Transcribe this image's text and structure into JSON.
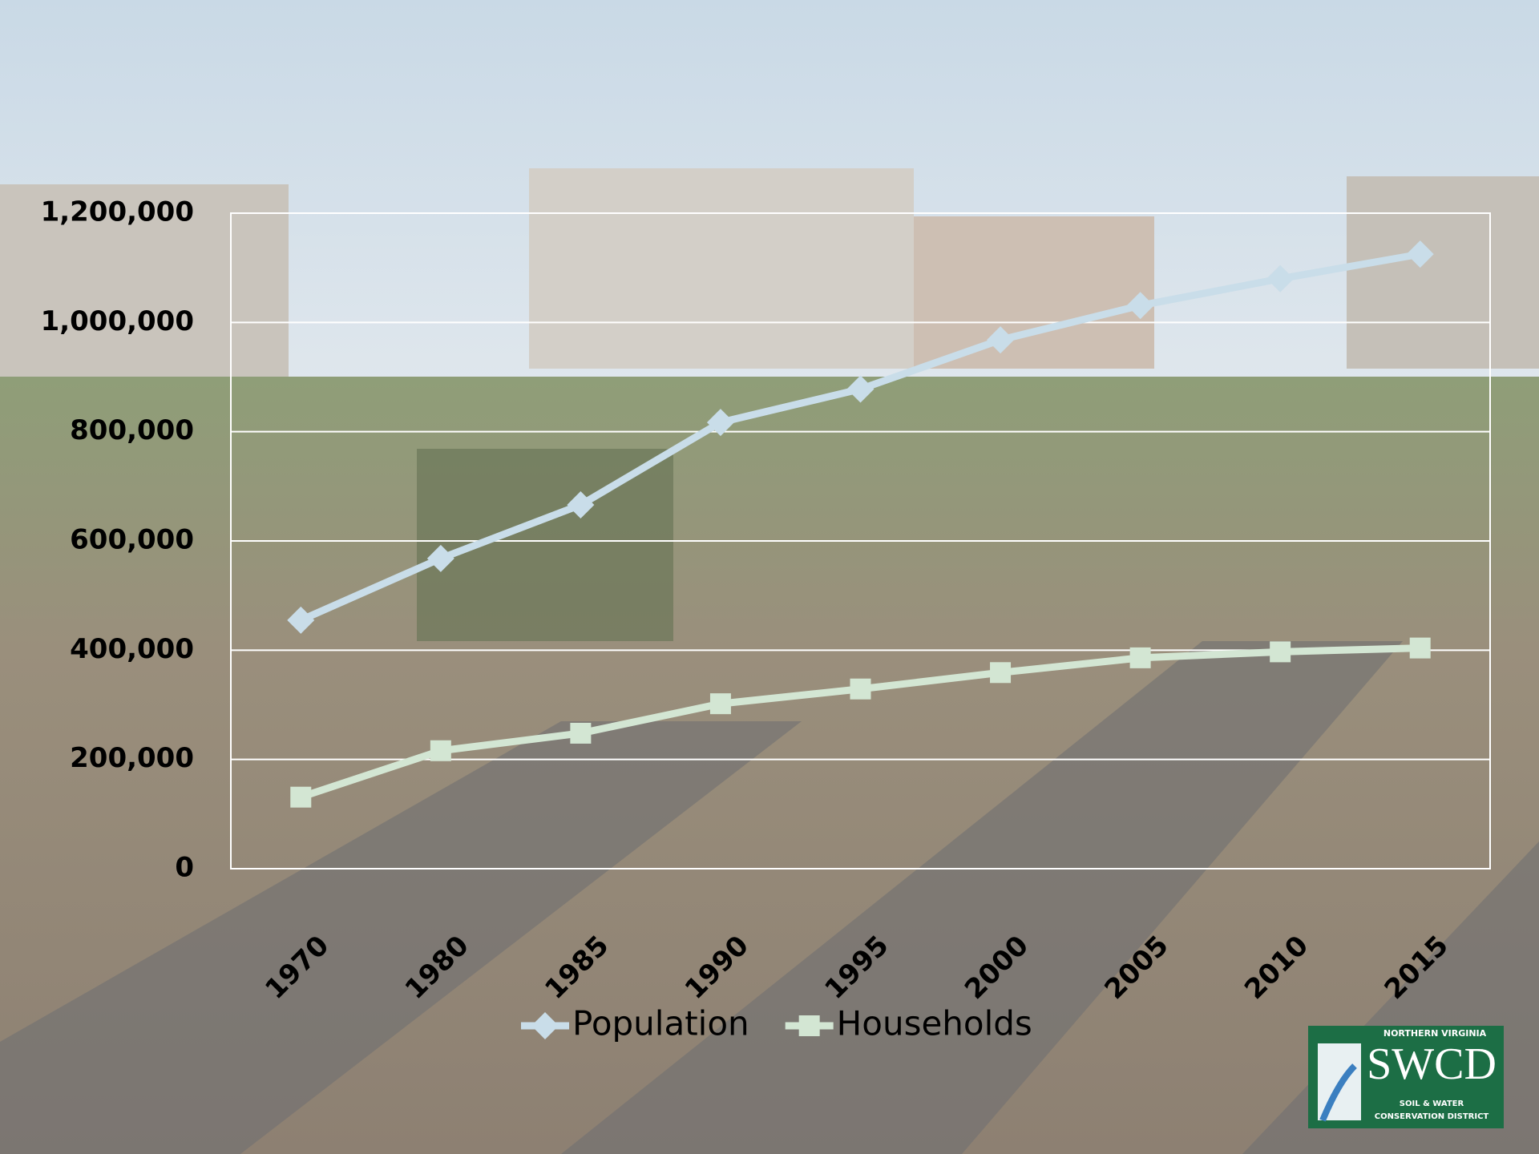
{
  "chart_data": {
    "type": "line",
    "categories": [
      "1970",
      "1980",
      "1985",
      "1990",
      "1995",
      "2000",
      "2005",
      "2010",
      "2015"
    ],
    "series": [
      {
        "name": "Population",
        "color": "#c9dde9",
        "marker": "diamond",
        "values": [
          455000,
          568000,
          666000,
          817000,
          878000,
          968000,
          1031000,
          1080000,
          1125000
        ]
      },
      {
        "name": "Households",
        "color": "#d3e6d3",
        "marker": "square",
        "values": [
          131000,
          216000,
          248000,
          302000,
          329000,
          359000,
          386000,
          397000,
          404000
        ]
      }
    ],
    "ylim": [
      0,
      1200000
    ],
    "yticks": [
      0,
      {
        "value": 200000,
        "label": "200,000"
      },
      {
        "value": 400000,
        "label": "400,000"
      },
      {
        "value": 600000,
        "label": "600,000"
      },
      {
        "value": 800000,
        "label": "800,000"
      },
      {
        "value": 1000000,
        "label": "1,000,000"
      },
      {
        "value": 1200000,
        "label": "1,200,000"
      }
    ],
    "grid": true,
    "legend": "bottom"
  },
  "logo": {
    "top": "NORTHERN VIRGINIA",
    "name": "SWCD",
    "line1": "SOIL & WATER",
    "line2": "CONSERVATION DISTRICT"
  }
}
